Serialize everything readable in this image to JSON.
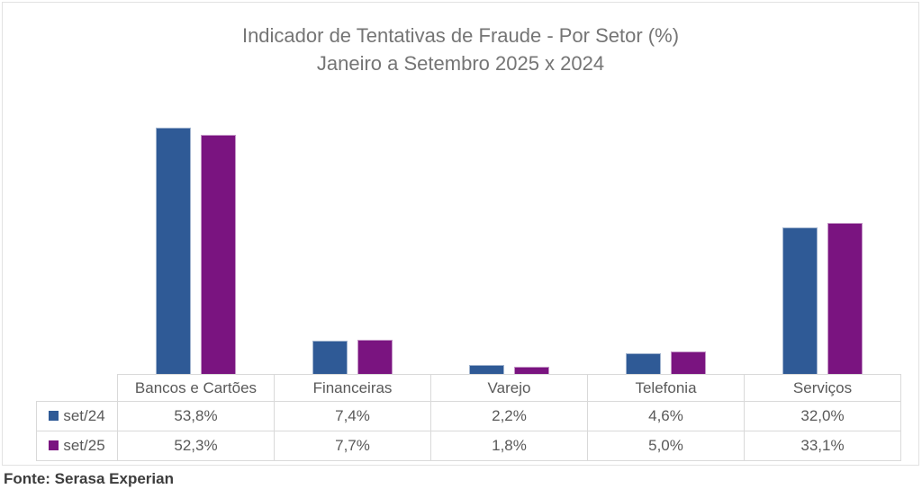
{
  "chart_data": {
    "type": "bar",
    "title": "Indicador de Tentativas de Fraude - Por Setor (%)",
    "subtitle": "Janeiro a Setembro 2025 x 2024",
    "categories": [
      "Bancos e Cartões",
      "Financeiras",
      "Varejo",
      "Telefonia",
      "Serviços"
    ],
    "series": [
      {
        "name": "set/24",
        "color": "#2F5A96",
        "values": [
          53.8,
          7.4,
          2.2,
          4.6,
          32.0
        ],
        "display": [
          "53,8%",
          "7,4%",
          "2,2%",
          "4,6%",
          "32,0%"
        ]
      },
      {
        "name": "set/25",
        "color": "#7A1480",
        "values": [
          52.3,
          7.7,
          1.8,
          5.0,
          33.1
        ],
        "display": [
          "52,3%",
          "7,7%",
          "1,8%",
          "5,0%",
          "33,1%"
        ]
      }
    ],
    "ylim": [
      0,
      60
    ],
    "grid": false,
    "legend_position": "table-left",
    "value_table_shown": true
  },
  "footer": {
    "source": "Fonte: Serasa Experian"
  }
}
